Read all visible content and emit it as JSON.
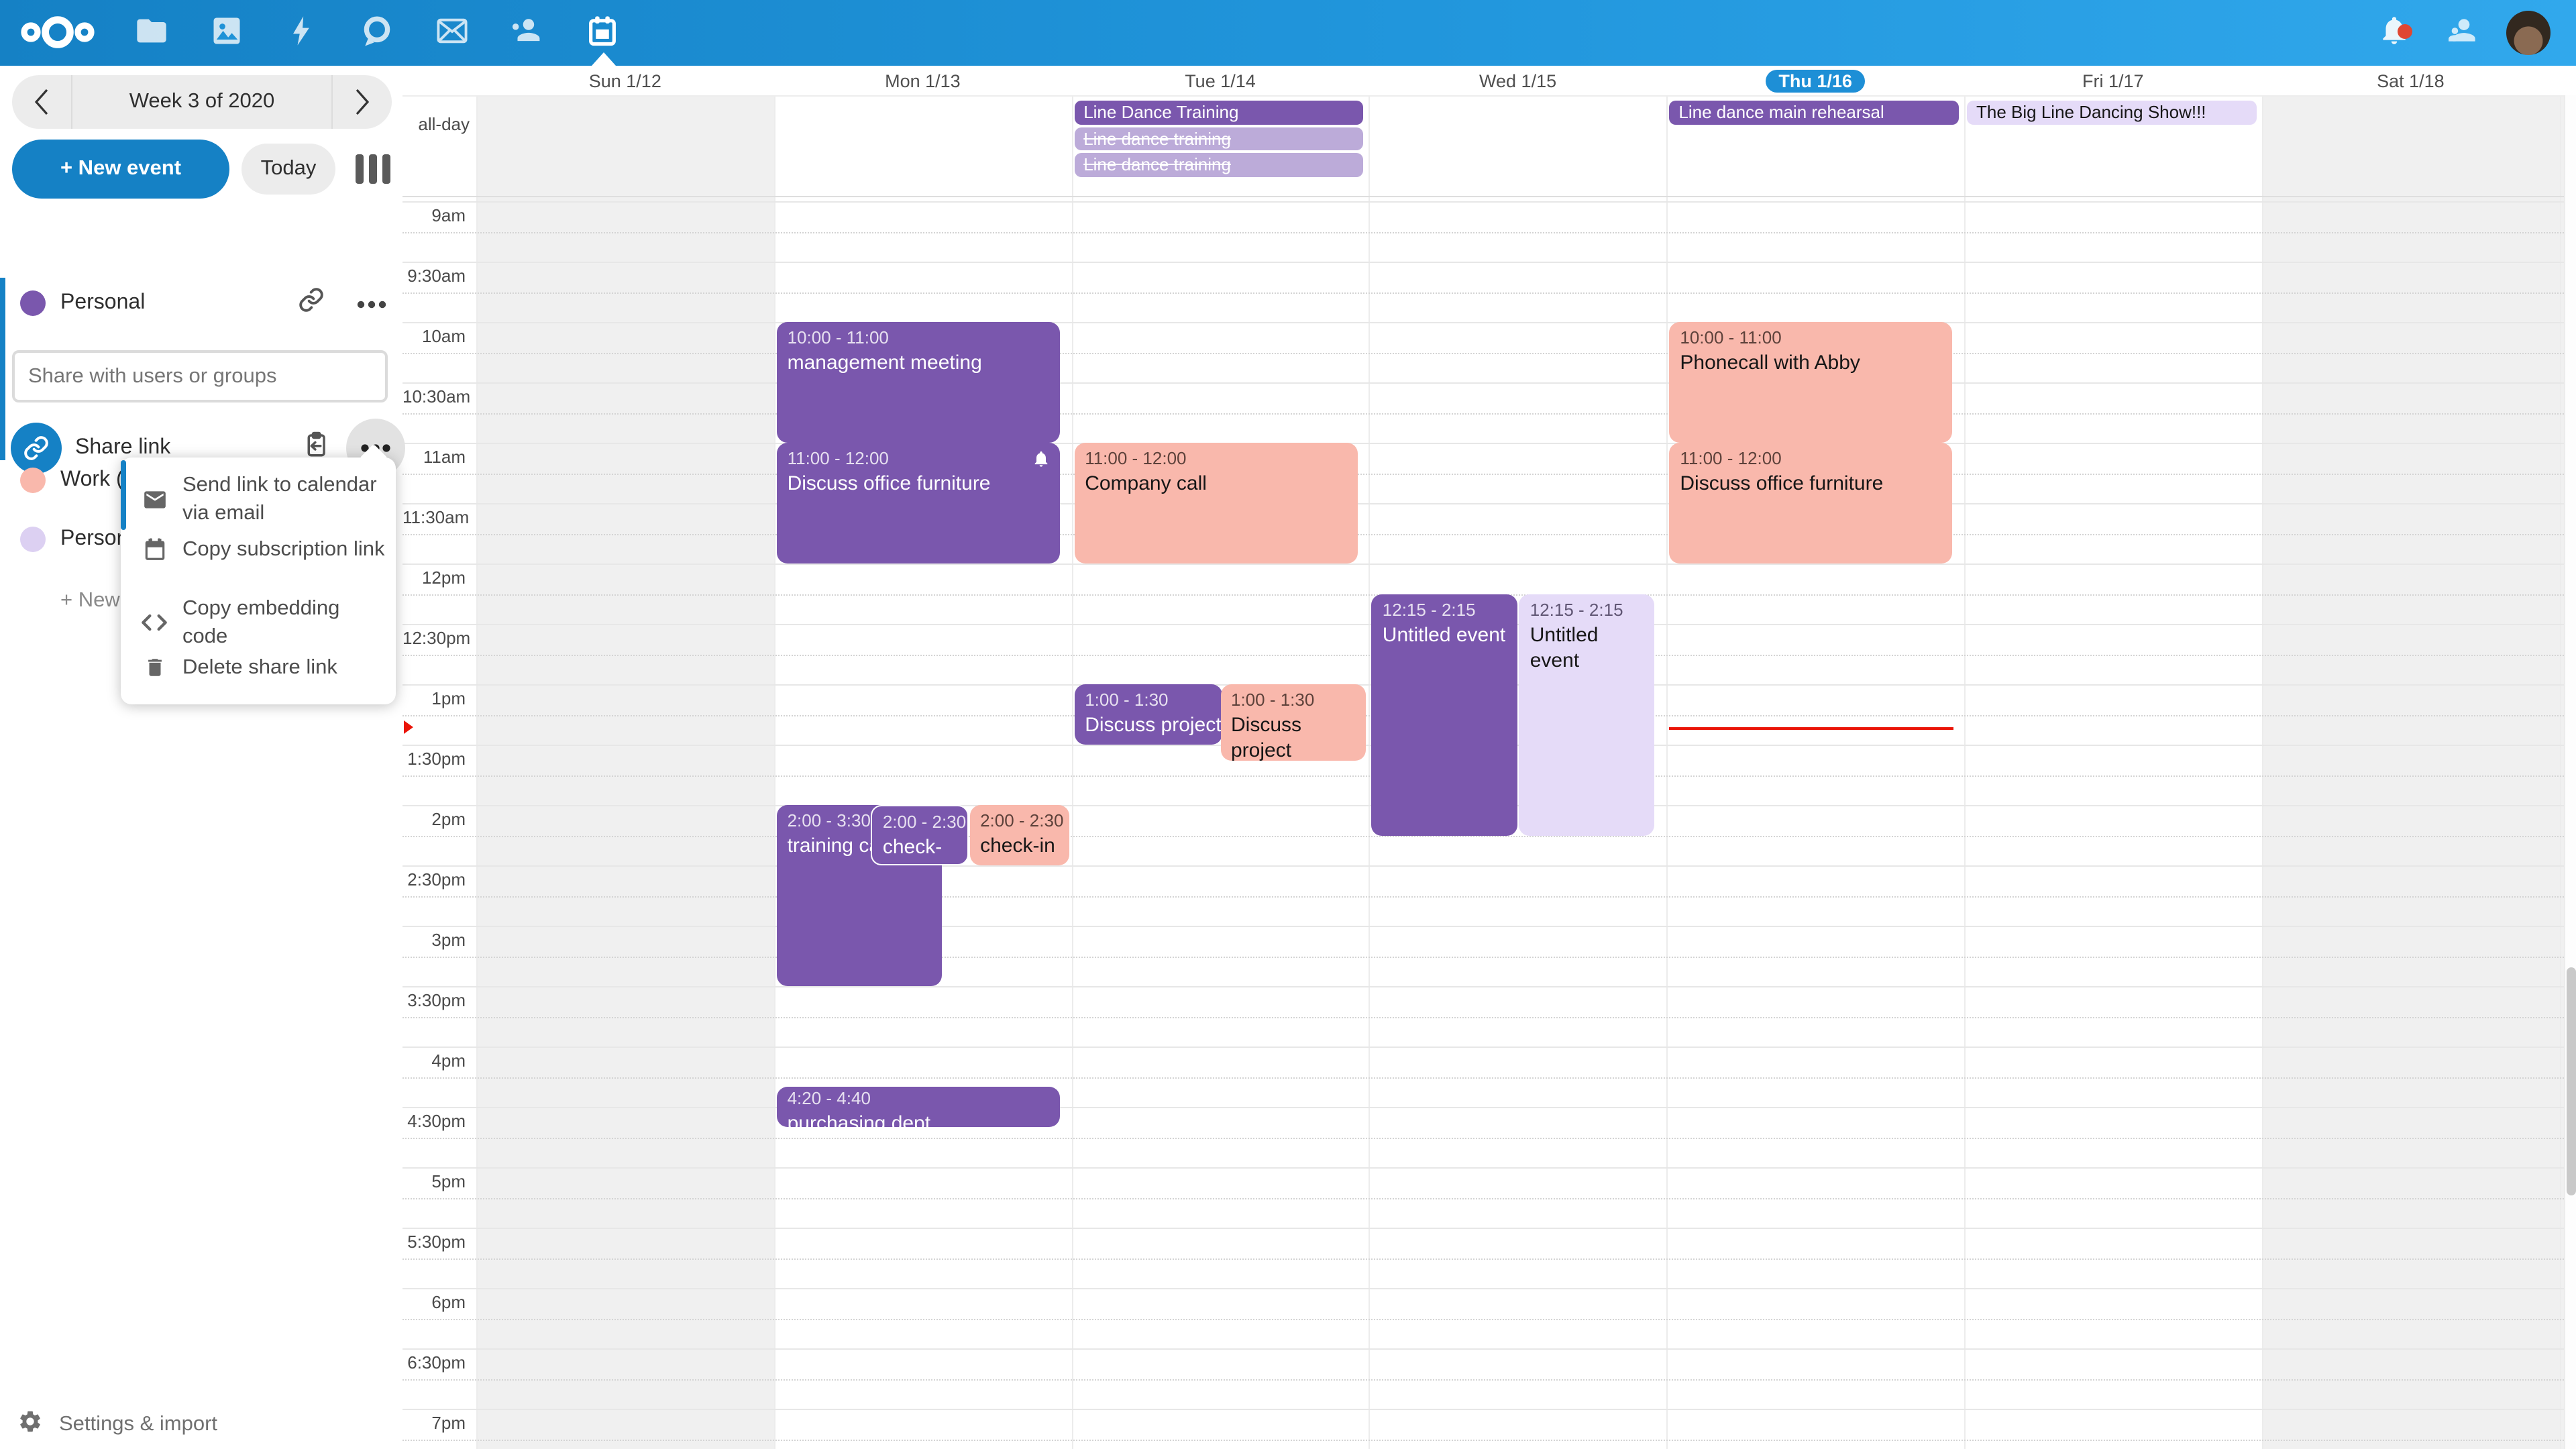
{
  "header": {
    "apps": [
      {
        "icon": "files"
      },
      {
        "icon": "photos"
      },
      {
        "icon": "activity"
      },
      {
        "icon": "talk"
      },
      {
        "icon": "mail"
      },
      {
        "icon": "contacts"
      },
      {
        "icon": "calendar",
        "active": true
      }
    ],
    "right": [
      "notifications",
      "contacts-menu",
      "avatar"
    ]
  },
  "sidebar": {
    "week_label": "Week 3 of 2020",
    "new_event_label": "+ New event",
    "today_label": "Today",
    "personal_calendar": {
      "name": "Personal",
      "color": "#7a57ad"
    },
    "share_placeholder": "Share with users or groups",
    "share_link_label": "Share link",
    "other_calendars": [
      {
        "name": "Work (C",
        "color": "#f9b8ac"
      },
      {
        "name": "Persona",
        "color": "#dcd0f2"
      }
    ],
    "new_calendar_label": "+ New c",
    "settings_label": "Settings & import"
  },
  "share_menu": {
    "items": [
      {
        "icon": "mail",
        "label": "Send link to calendar via email"
      },
      {
        "icon": "calendar",
        "label": "Copy subscription link"
      },
      {
        "icon": "code",
        "label": "Copy embedding code"
      },
      {
        "icon": "trash",
        "label": "Delete share link"
      }
    ]
  },
  "calendar": {
    "allday_label": "all-day",
    "days": [
      {
        "label": "Sun 1/12",
        "weekend": true
      },
      {
        "label": "Mon 1/13"
      },
      {
        "label": "Tue 1/14"
      },
      {
        "label": "Wed 1/15"
      },
      {
        "label": "Thu 1/16",
        "today": true
      },
      {
        "label": "Fri 1/17"
      },
      {
        "label": "Sat 1/18",
        "weekend": true
      }
    ],
    "time_labels": [
      "9am",
      "9:30am",
      "10am",
      "10:30am",
      "11am",
      "11:30am",
      "12pm",
      "12:30pm",
      "1pm",
      "1:30pm",
      "2pm",
      "2:30pm",
      "3pm",
      "3:30pm",
      "4pm",
      "4:30pm",
      "5pm",
      "5:30pm",
      "6pm",
      "6:30pm",
      "7pm"
    ],
    "allday_events": [
      {
        "day": 2,
        "row": 0,
        "title": "Line Dance Training",
        "color": "purple"
      },
      {
        "day": 2,
        "row": 1,
        "title": "Line dance training",
        "color": "cancel"
      },
      {
        "day": 2,
        "row": 2,
        "title": "Line dance training",
        "color": "cancel"
      },
      {
        "day": 4,
        "row": 0,
        "title": "Line dance main rehearsal",
        "color": "purple"
      },
      {
        "day": 5,
        "row": 0,
        "title": "The Big Line Dancing Show!!!",
        "color": "lavlight"
      }
    ],
    "events": [
      {
        "day": 1,
        "start": 10,
        "end": 11,
        "time": "10:00 - 11:00",
        "title": "management meeting",
        "color": "purple"
      },
      {
        "day": 1,
        "start": 11,
        "end": 12,
        "time": "11:00 - 12:00",
        "title": "Discuss office furniture",
        "color": "purple",
        "bell": true
      },
      {
        "day": 1,
        "start": 14,
        "end": 15.5,
        "time": "2:00 - 3:30",
        "title": "training call",
        "color": "purple",
        "xf": 0,
        "wf": 0.565
      },
      {
        "day": 1,
        "start": 14,
        "end": 14.5,
        "time": "2:00 - 2:30",
        "title": "check-in",
        "color": "purple",
        "xf": 0.322,
        "wf": 0.335,
        "wborder": true
      },
      {
        "day": 1,
        "start": 14,
        "end": 14.5,
        "time": "2:00 - 2:30",
        "title": "check-in",
        "color": "salmon",
        "xf": 0.66,
        "wf": 0.34
      },
      {
        "day": 1,
        "start": 16.333,
        "end": 16.667,
        "time": "4:20 - 4:40",
        "title": "purchasing dept conversation",
        "color": "purple",
        "small": true
      },
      {
        "day": 2,
        "start": 11,
        "end": 12,
        "time": "11:00 - 12:00",
        "title": "Company call",
        "color": "salmon"
      },
      {
        "day": 2,
        "start": 13,
        "end": 13.5,
        "time": "1:00 - 1:30",
        "title": "Discuss project announcement",
        "color": "purple",
        "xf": 0,
        "wf": 0.505,
        "clip": true
      },
      {
        "day": 2,
        "start": 13,
        "end": 13.5,
        "time": "1:00 - 1:30",
        "title": "Discuss project announcement",
        "color": "salmon",
        "xf": 0.5,
        "wf": 0.5,
        "extra_h": 12
      },
      {
        "day": 3,
        "start": 12.25,
        "end": 14.25,
        "time": "12:15 - 2:15",
        "title": "Untitled event",
        "color": "purple",
        "xf": 0,
        "wf": 0.5
      },
      {
        "day": 3,
        "start": 12.25,
        "end": 14.25,
        "time": "12:15 - 2:15",
        "title": "Untitled event",
        "color": "lavender",
        "xf": 0.505,
        "wf": 0.462
      },
      {
        "day": 4,
        "start": 10,
        "end": 11,
        "time": "10:00 - 11:00",
        "title": "Phonecall with Abby",
        "color": "salmon"
      },
      {
        "day": 4,
        "start": 11,
        "end": 12,
        "time": "11:00 - 12:00",
        "title": "Discuss office furniture",
        "color": "salmon"
      }
    ],
    "now_indicator": {
      "day": 4,
      "hour": 13.35
    }
  },
  "colors": {
    "accent": "#1581c5",
    "today_pill": "#1e8fd6",
    "event_purple": "#7a57ad",
    "event_salmon": "#f9b8ac",
    "event_lavender": "#e5dbf8",
    "event_cancelled": "#bcabd9",
    "now_red": "#ea1408",
    "notification_dot": "#f43c1e"
  }
}
